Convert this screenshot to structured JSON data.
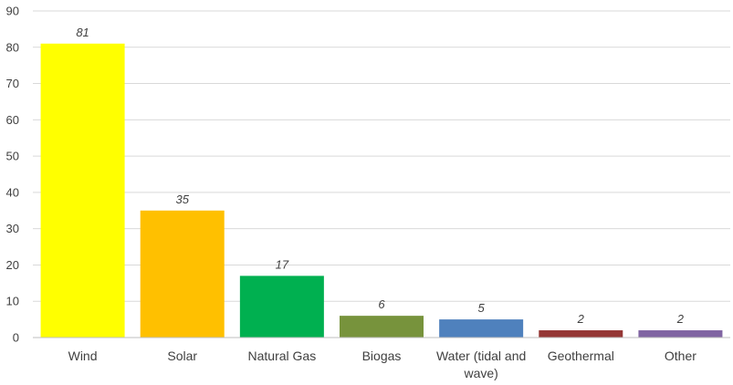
{
  "chart_data": {
    "type": "bar",
    "categories": [
      "Wind",
      "Solar",
      "Natural Gas",
      "Biogas",
      "Water (tidal and wave)",
      "Geothermal",
      "Other"
    ],
    "category_lines": [
      [
        "Wind"
      ],
      [
        "Solar"
      ],
      [
        "Natural Gas"
      ],
      [
        "Biogas"
      ],
      [
        "Water (tidal and",
        "wave)"
      ],
      [
        "Geothermal"
      ],
      [
        "Other"
      ]
    ],
    "values": [
      81,
      35,
      17,
      6,
      5,
      2,
      2
    ],
    "colors": [
      "#ffff00",
      "#ffc000",
      "#00b050",
      "#77933c",
      "#4f81bd",
      "#953735",
      "#8064a2"
    ],
    "ylim": [
      0,
      90
    ],
    "yticks": [
      0,
      10,
      20,
      30,
      40,
      50,
      60,
      70,
      80,
      90
    ],
    "grid": true,
    "legend": "none",
    "data_labels": true
  }
}
